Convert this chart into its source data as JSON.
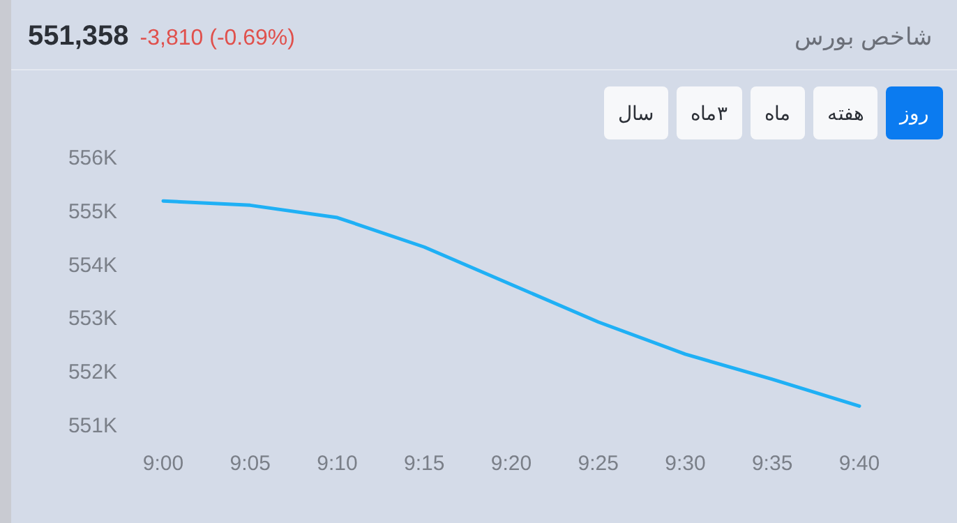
{
  "chart_data": {
    "type": "line",
    "title": "شاخص بورس",
    "annotations": [
      "551,358",
      "-3,810 (-0.69%)",
      "روز",
      "هفته",
      "ماه",
      "۳ماه",
      "سال"
    ],
    "x": [
      9,
      9.0833,
      9.1667,
      9.25,
      9.3333,
      9.4167,
      9.5,
      9.5833,
      9.6667
    ],
    "series": [
      {
        "color": "#1fb0f5",
        "values": [
          555190,
          555110,
          554880,
          554330,
          553630,
          552930,
          552330,
          551860,
          551360
        ]
      }
    ],
    "xlim": [
      9,
      9.6667
    ],
    "xticks": [
      {
        "value": 9,
        "label": "9:00"
      },
      {
        "value": 9.0833,
        "label": "9:05"
      },
      {
        "value": 9.1667,
        "label": "9:10"
      },
      {
        "value": 9.25,
        "label": "9:15"
      },
      {
        "value": 9.3333,
        "label": "9:20"
      },
      {
        "value": 9.4167,
        "label": "9:25"
      },
      {
        "value": 9.5,
        "label": "9:30"
      },
      {
        "value": 9.5833,
        "label": "9:35"
      },
      {
        "value": 9.6667,
        "label": "9:40"
      }
    ],
    "ylim": [
      551000,
      556000
    ],
    "yticks": [
      {
        "value": 551000,
        "label": "551K"
      },
      {
        "value": 552000,
        "label": "552K"
      },
      {
        "value": 553000,
        "label": "553K"
      },
      {
        "value": 554000,
        "label": "554K"
      },
      {
        "value": 555000,
        "label": "555K"
      },
      {
        "value": 556000,
        "label": "556K"
      }
    ],
    "grid": false,
    "marker": "none",
    "line_style": "solid"
  }
}
